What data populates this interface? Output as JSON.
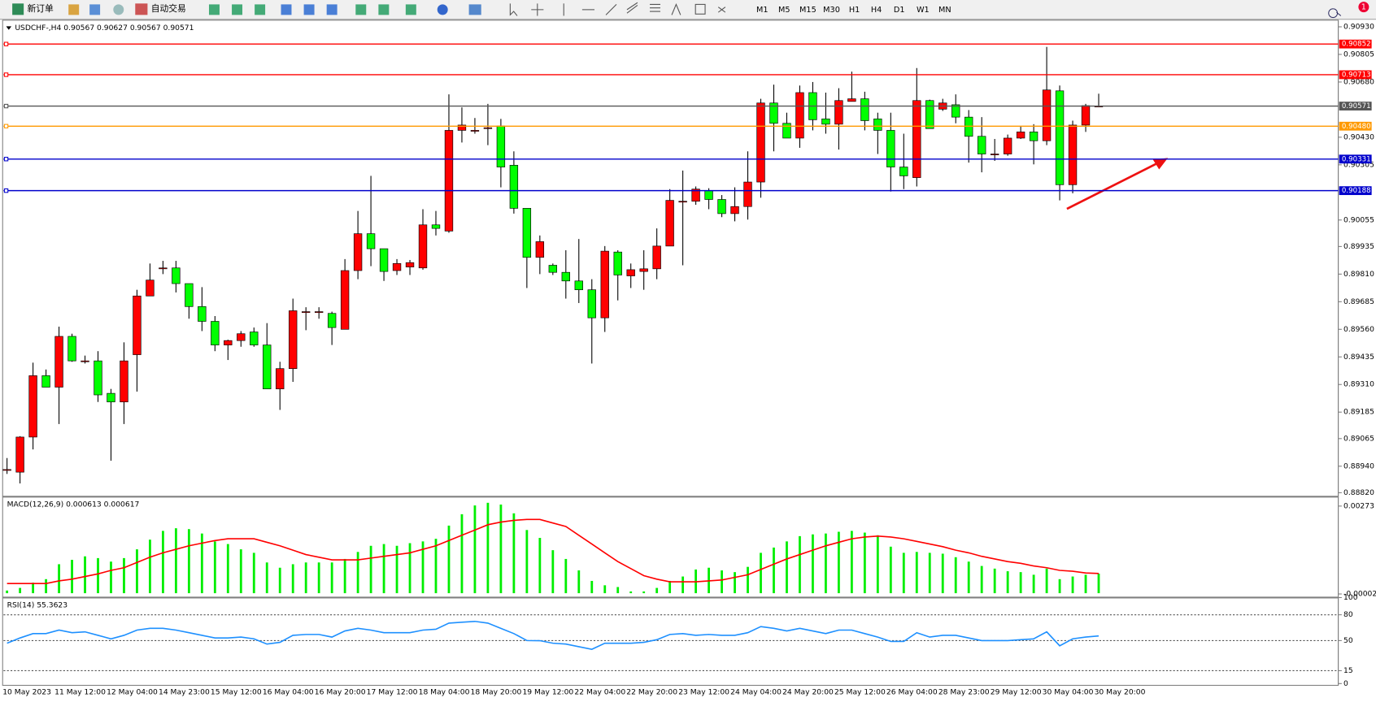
{
  "toolbar": {
    "new_order": "新订单",
    "auto_trading": "自动交易",
    "timeframes": [
      "M1",
      "M5",
      "M15",
      "M30",
      "H1",
      "H4",
      "D1",
      "W1",
      "MN"
    ],
    "badge": "1"
  },
  "chart_data": [
    {
      "type": "candlestick",
      "title": "USDCHF-,H4  0.90567 0.90627 0.90567 0.90571",
      "categories": [
        "10 May 2023",
        null,
        null,
        null,
        "11 May 12:00",
        null,
        null,
        null,
        "12 May 04:00",
        null,
        null,
        null,
        "14 May 23:00",
        null,
        null,
        null,
        "15 May 12:00",
        null,
        null,
        null,
        "16 May 04:00",
        null,
        null,
        null,
        "16 May 20:00",
        null,
        null,
        null,
        "17 May 12:00",
        null,
        null,
        null,
        "18 May 04:00",
        null,
        null,
        null,
        "18 May 20:00",
        null,
        null,
        null,
        "19 May 12:00",
        null,
        null,
        null,
        "22 May 04:00",
        null,
        null,
        null,
        "22 May 20:00",
        null,
        null,
        null,
        "23 May 12:00",
        null,
        null,
        null,
        "24 May 04:00",
        null,
        null,
        null,
        "24 May 20:00",
        null,
        null,
        null,
        "25 May 12:00",
        null,
        null,
        null,
        "26 May 04:00",
        null,
        null,
        null,
        "28 May 23:00",
        null,
        null,
        null,
        "29 May 12:00",
        null,
        null,
        null,
        "30 May 04:00",
        null,
        null,
        null,
        "30 May 20:00"
      ],
      "open": [
        0.88925,
        0.88913,
        0.89072,
        0.8935,
        0.89298,
        0.89528,
        0.89417,
        0.89417,
        0.8927,
        0.89231,
        0.89445,
        0.89711,
        0.89838,
        0.89838,
        0.89767,
        0.89663,
        0.89596,
        0.89489,
        0.89509,
        0.89548,
        0.89489,
        0.8929,
        0.89382,
        0.8964,
        0.8964,
        0.89632,
        0.8956,
        0.89826,
        0.89993,
        0.89925,
        0.89826,
        0.89842,
        0.89838,
        0.90033,
        0.90005,
        0.90461,
        0.90461,
        0.90473,
        0.90481,
        0.90303,
        0.90108,
        0.89886,
        0.8985,
        0.89818,
        0.89779,
        0.89739,
        0.89612,
        0.8991,
        0.89802,
        0.89822,
        0.89834,
        0.89937,
        0.9014,
        0.9014,
        0.90188,
        0.90148,
        0.90084,
        0.90116,
        0.90227,
        0.90585,
        0.90493,
        0.90426,
        0.90632,
        0.90513,
        0.90489,
        0.90592,
        0.90604,
        0.90513,
        0.90461,
        0.90295,
        0.90247,
        0.90596,
        0.90557,
        0.90577,
        0.90521,
        0.90434,
        0.90354,
        0.90354,
        0.90426,
        0.90454,
        0.90414,
        0.9064,
        0.90215,
        0.90485,
        0.90567
      ],
      "high": [
        0.88977,
        0.89076,
        0.89409,
        0.89378,
        0.89572,
        0.8954,
        0.89441,
        0.89461,
        0.8929,
        0.89501,
        0.89739,
        0.89858,
        0.8987,
        0.8987,
        0.89767,
        0.89751,
        0.8962,
        0.89513,
        0.89552,
        0.89568,
        0.89588,
        0.89413,
        0.89699,
        0.8966,
        0.8966,
        0.8964,
        0.89878,
        0.90096,
        0.90255,
        0.89925,
        0.89878,
        0.89874,
        0.90104,
        0.90096,
        0.90624,
        0.90565,
        0.90517,
        0.90581,
        0.90513,
        0.90366,
        0.90108,
        0.89985,
        0.89858,
        0.89918,
        0.89969,
        0.89787,
        0.89937,
        0.89918,
        0.89858,
        0.89918,
        0.90017,
        0.90195,
        0.90279,
        0.90207,
        0.90199,
        0.90168,
        0.90203,
        0.90366,
        0.90604,
        0.90668,
        0.90541,
        0.90664,
        0.9068,
        0.90632,
        0.90652,
        0.90727,
        0.90636,
        0.90541,
        0.90541,
        0.90446,
        0.90743,
        0.906,
        0.90604,
        0.90624,
        0.90553,
        0.90521,
        0.90422,
        0.90442,
        0.90481,
        0.90489,
        0.90839,
        0.90664,
        0.90505,
        0.90581,
        0.90627
      ],
      "low": [
        0.88905,
        0.88862,
        0.89016,
        0.89298,
        0.89131,
        0.89413,
        0.89405,
        0.89231,
        0.88965,
        0.89131,
        0.89278,
        0.89711,
        0.8981,
        0.89727,
        0.89608,
        0.89552,
        0.89461,
        0.89421,
        0.89481,
        0.89481,
        0.8929,
        0.89195,
        0.89322,
        0.89556,
        0.89608,
        0.89489,
        0.8956,
        0.89787,
        0.89846,
        0.89779,
        0.89806,
        0.89806,
        0.8983,
        0.89985,
        0.89997,
        0.90406,
        0.90446,
        0.90394,
        0.90203,
        0.90084,
        0.89747,
        0.8981,
        0.89806,
        0.89699,
        0.89679,
        0.89405,
        0.89548,
        0.89691,
        0.89747,
        0.89739,
        0.89787,
        0.89937,
        0.8985,
        0.90124,
        0.90104,
        0.90068,
        0.90049,
        0.90057,
        0.90156,
        0.90366,
        0.90426,
        0.90382,
        0.90461,
        0.90446,
        0.90374,
        0.90592,
        0.90461,
        0.90354,
        0.90184,
        0.90195,
        0.90207,
        0.90469,
        0.90549,
        0.90493,
        0.90315,
        0.90271,
        0.90323,
        0.90346,
        0.90422,
        0.90307,
        0.90394,
        0.90144,
        0.90176,
        0.90454,
        0.90567
      ],
      "close": [
        0.88925,
        0.89072,
        0.8935,
        0.89298,
        0.89528,
        0.89417,
        0.89417,
        0.89263,
        0.89231,
        0.89417,
        0.89711,
        0.89783,
        0.89838,
        0.89767,
        0.89663,
        0.89596,
        0.89489,
        0.89509,
        0.8954,
        0.89489,
        0.8929,
        0.89382,
        0.89644,
        0.8964,
        0.8964,
        0.89568,
        0.89826,
        0.89993,
        0.89925,
        0.89822,
        0.89858,
        0.89862,
        0.90033,
        0.90017,
        0.90461,
        0.90485,
        0.90461,
        0.90473,
        0.90295,
        0.90108,
        0.89886,
        0.89957,
        0.89818,
        0.89779,
        0.89739,
        0.89612,
        0.89914,
        0.89806,
        0.8983,
        0.89834,
        0.89937,
        0.90144,
        0.9014,
        0.90195,
        0.90148,
        0.90084,
        0.90116,
        0.90227,
        0.90585,
        0.90493,
        0.90426,
        0.90632,
        0.90509,
        0.90489,
        0.90596,
        0.90604,
        0.90505,
        0.90461,
        0.90295,
        0.90255,
        0.90596,
        0.90469,
        0.90585,
        0.90521,
        0.90434,
        0.90354,
        0.90354,
        0.90426,
        0.90454,
        0.90414,
        0.90644,
        0.90215,
        0.90485,
        0.90573,
        0.90571
      ],
      "up_color": "#ff0000",
      "down_color": "#00ff00",
      "ylim": [
        0.8881,
        0.9096
      ],
      "yticks": [
        {
          "value": 0.9093,
          "label": "0.90930"
        },
        0.90805,
        {
          "value": 0.9068,
          "label": "0.90680"
        },
        {
          "value": 0.9043,
          "label": "0.90430"
        },
        0.90305,
        0.90055,
        0.89935,
        {
          "value": 0.8981,
          "label": "0.89810"
        },
        0.89685,
        {
          "value": 0.8956,
          "label": "0.89560"
        },
        0.89435,
        {
          "value": 0.8931,
          "label": "0.89310"
        },
        0.89185,
        0.89065,
        {
          "value": 0.8894,
          "label": "0.88940"
        },
        {
          "value": 0.8882,
          "label": "0.88820"
        }
      ],
      "hlines": [
        {
          "value": 0.90852,
          "color": "#ff0000"
        },
        {
          "value": 0.90713,
          "color": "#ff0000"
        },
        {
          "value": 0.90571,
          "color": "#555555"
        },
        {
          "value": 0.9048,
          "label": "0.90480",
          "color": "#ff9900"
        },
        {
          "value": 0.90331,
          "color": "#0000cc"
        },
        {
          "value": 0.90188,
          "color": "#0000cc"
        }
      ]
    },
    {
      "type": "macd",
      "title": "MACD(12,26,9) 0.000613 0.000617",
      "series": [
        {
          "style": "bar",
          "color": "#00ee00",
          "values": [
            8.3e-05,
            0.000165,
            0.00033,
            0.00044,
            0.000908,
            0.001045,
            0.001155,
            0.0011,
            0.00099,
            0.0011,
            0.001375,
            0.001678,
            0.001953,
            0.002035,
            0.002008,
            0.00187,
            0.001623,
            0.00154,
            0.001375,
            0.001265,
            0.000963,
            0.000798,
            0.000908,
            0.000963,
            0.000963,
            0.000963,
            0.001073,
            0.001293,
            0.001485,
            0.00154,
            0.001485,
            0.001568,
            0.001623,
            0.001705,
            0.002118,
            0.002475,
            0.00275,
            0.002833,
            0.002778,
            0.002503,
            0.00198,
            0.001733,
            0.001348,
            0.001073,
            0.000715,
            0.000385,
            0.000248,
            0.000193,
            5.5e-05,
            5.5e-05,
            0.000165,
            0.000385,
            0.000523,
            0.000743,
            0.000798,
            0.000715,
            0.00066,
            0.000825,
            0.001265,
            0.00143,
            0.001623,
            0.001788,
            0.001843,
            0.00187,
            0.001925,
            0.001953,
            0.001898,
            0.001815,
            0.001458,
            0.001265,
            0.001293,
            0.001265,
            0.001238,
            0.001128,
            0.00099,
            0.000853,
            0.00077,
            0.000688,
            0.00066,
            0.000578,
            0.00077,
            0.00044,
            0.000523,
            0.000578,
            0.000613
          ]
        },
        {
          "style": "line",
          "color": "#ff0000",
          "values": [
            0.000303,
            0.000303,
            0.000303,
            0.000303,
            0.000385,
            0.00044,
            0.000523,
            0.000605,
            0.000715,
            0.000798,
            0.000963,
            0.001128,
            0.001265,
            0.001375,
            0.001485,
            0.001568,
            0.00165,
            0.001705,
            0.001705,
            0.001705,
            0.001595,
            0.001485,
            0.001348,
            0.00121,
            0.001128,
            0.001045,
            0.001045,
            0.001045,
            0.0011,
            0.001155,
            0.00121,
            0.001265,
            0.001375,
            0.001485,
            0.00165,
            0.001815,
            0.00198,
            0.002145,
            0.002228,
            0.002283,
            0.00231,
            0.00231,
            0.0022,
            0.00209,
            0.001815,
            0.00154,
            0.001265,
            0.00099,
            0.00077,
            0.00055,
            0.00044,
            0.000358,
            0.000358,
            0.000358,
            0.000385,
            0.000413,
            0.000495,
            0.000578,
            0.000743,
            0.000908,
            0.001073,
            0.00121,
            0.001348,
            0.001485,
            0.001595,
            0.001705,
            0.00176,
            0.001788,
            0.00176,
            0.001705,
            0.001623,
            0.00154,
            0.001458,
            0.001348,
            0.001265,
            0.001155,
            0.001073,
            0.00099,
            0.000935,
            0.000853,
            0.000798,
            0.000715,
            0.000688,
            0.000633,
            0.000617
          ]
        }
      ],
      "ylim": [
        -0.00011,
        0.00297
      ],
      "yticks": [
        0.00273,
        -2.4e-05
      ]
    },
    {
      "type": "line",
      "title": "RSI(14) 55.3623",
      "color": "#1e90ff",
      "values": [
        46.95,
        53.05,
        58.12,
        58.12,
        62.19,
        59.14,
        60.16,
        56.09,
        52.03,
        56.09,
        62.19,
        64.22,
        64.22,
        62.19,
        59.14,
        56.09,
        53.05,
        53.05,
        54.06,
        52.03,
        45.94,
        47.97,
        56.09,
        57.11,
        57.11,
        54.06,
        61.17,
        64.22,
        62.19,
        59.14,
        59.14,
        59.14,
        62.19,
        63.2,
        70.31,
        71.33,
        72.34,
        70.31,
        64.22,
        58.12,
        50.02,
        49.9,
        46.95,
        45.94,
        42.89,
        39.84,
        46.95,
        46.95,
        46.95,
        47.97,
        51.02,
        57.11,
        58.12,
        56.09,
        57.11,
        56.09,
        56.09,
        59.14,
        66.25,
        64.22,
        61.17,
        64.22,
        61.17,
        58.12,
        62.19,
        62.19,
        58.12,
        54.06,
        48.98,
        48.98,
        59.14,
        54.06,
        56.09,
        56.09,
        53.05,
        50,
        50,
        50,
        51.02,
        52.03,
        60.16,
        43.91,
        52.03,
        54.06,
        55.3623
      ],
      "ylim": [
        0,
        100
      ],
      "yticks": [
        100,
        80,
        50,
        15,
        0
      ],
      "levels": [
        80,
        50,
        15
      ]
    }
  ]
}
